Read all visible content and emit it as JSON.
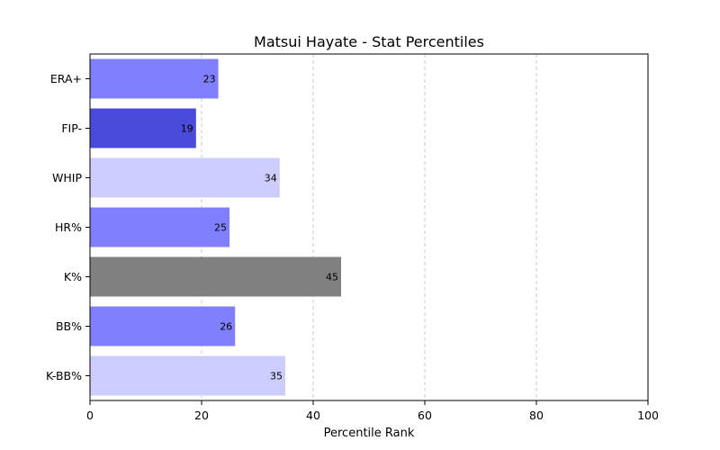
{
  "chart_data": {
    "type": "bar",
    "orientation": "horizontal",
    "title": "Matsui Hayate - Stat Percentiles",
    "xlabel": "Percentile Rank",
    "ylabel": "",
    "xlim": [
      0,
      100
    ],
    "xticks": [
      0,
      20,
      40,
      60,
      80,
      100
    ],
    "grid": "vertical-dashed",
    "categories": [
      "ERA+",
      "FIP-",
      "WHIP",
      "HR%",
      "K%",
      "BB%",
      "K-BB%"
    ],
    "values": [
      23,
      19,
      34,
      25,
      45,
      26,
      35
    ],
    "colors": [
      "#8080ff",
      "#4a4adb",
      "#ccccff",
      "#8080ff",
      "#808080",
      "#8080ff",
      "#ccccff"
    ]
  }
}
